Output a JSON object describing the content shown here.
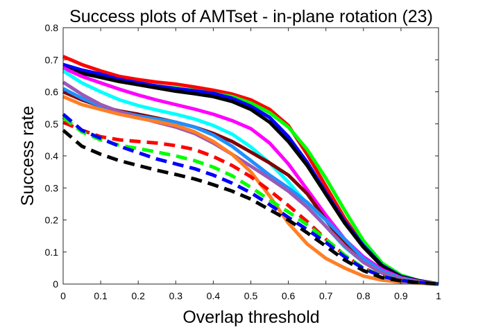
{
  "chart_data": {
    "type": "line",
    "title": "Success plots of AMTset - in-plane rotation (23)",
    "xlabel": "Overlap threshold",
    "ylabel": "Success rate",
    "xlim": [
      0,
      1
    ],
    "ylim": [
      0,
      0.8
    ],
    "xticks": [
      "0",
      "0.1",
      "0.2",
      "0.3",
      "0.4",
      "0.5",
      "0.6",
      "0.7",
      "0.8",
      "0.9",
      "1"
    ],
    "yticks": [
      "0",
      "0.1",
      "0.2",
      "0.3",
      "0.4",
      "0.5",
      "0.6",
      "0.7",
      "0.8"
    ],
    "grid": false,
    "legend": "none",
    "x": [
      0,
      0.05,
      0.1,
      0.15,
      0.2,
      0.25,
      0.3,
      0.35,
      0.4,
      0.45,
      0.5,
      0.55,
      0.6,
      0.65,
      0.7,
      0.75,
      0.8,
      0.85,
      0.9,
      0.95,
      1.0
    ],
    "series": [
      {
        "color": "#ff0000",
        "style": "solid",
        "values": [
          0.71,
          0.685,
          0.665,
          0.648,
          0.638,
          0.63,
          0.624,
          0.615,
          0.605,
          0.593,
          0.575,
          0.545,
          0.495,
          0.405,
          0.305,
          0.205,
          0.12,
          0.06,
          0.025,
          0.01,
          0.0
        ]
      },
      {
        "color": "#00ff00",
        "style": "solid",
        "values": [
          0.675,
          0.658,
          0.645,
          0.632,
          0.625,
          0.618,
          0.612,
          0.604,
          0.595,
          0.585,
          0.565,
          0.535,
          0.49,
          0.42,
          0.33,
          0.23,
          0.135,
          0.065,
          0.028,
          0.01,
          0.0
        ]
      },
      {
        "color": "#0000ff",
        "style": "solid",
        "values": [
          0.685,
          0.668,
          0.655,
          0.638,
          0.628,
          0.618,
          0.61,
          0.603,
          0.595,
          0.58,
          0.555,
          0.52,
          0.46,
          0.38,
          0.285,
          0.195,
          0.12,
          0.058,
          0.024,
          0.01,
          0.0
        ]
      },
      {
        "color": "#000000",
        "style": "solid",
        "values": [
          0.675,
          0.658,
          0.645,
          0.632,
          0.622,
          0.612,
          0.602,
          0.594,
          0.585,
          0.57,
          0.545,
          0.505,
          0.445,
          0.37,
          0.28,
          0.19,
          0.115,
          0.055,
          0.022,
          0.01,
          0.0
        ]
      },
      {
        "color": "#ff00ff",
        "style": "solid",
        "values": [
          0.675,
          0.648,
          0.628,
          0.608,
          0.59,
          0.574,
          0.56,
          0.546,
          0.53,
          0.51,
          0.485,
          0.44,
          0.375,
          0.295,
          0.215,
          0.14,
          0.085,
          0.045,
          0.02,
          0.008,
          0.0
        ]
      },
      {
        "color": "#00ffff",
        "style": "solid",
        "values": [
          0.665,
          0.628,
          0.6,
          0.575,
          0.557,
          0.543,
          0.53,
          0.515,
          0.495,
          0.468,
          0.428,
          0.378,
          0.318,
          0.25,
          0.18,
          0.115,
          0.068,
          0.035,
          0.016,
          0.006,
          0.0
        ]
      },
      {
        "color": "#800000",
        "style": "solid",
        "values": [
          0.6,
          0.575,
          0.555,
          0.54,
          0.53,
          0.518,
          0.505,
          0.49,
          0.47,
          0.445,
          0.412,
          0.378,
          0.34,
          0.282,
          0.2,
          0.125,
          0.07,
          0.035,
          0.015,
          0.006,
          0.0
        ]
      },
      {
        "color": "#1e90ff",
        "style": "solid",
        "values": [
          0.61,
          0.58,
          0.555,
          0.538,
          0.525,
          0.515,
          0.505,
          0.49,
          0.465,
          0.43,
          0.385,
          0.34,
          0.3,
          0.255,
          0.2,
          0.14,
          0.08,
          0.04,
          0.018,
          0.007,
          0.0
        ]
      },
      {
        "color": "#9b59b6",
        "style": "solid",
        "values": [
          0.63,
          0.592,
          0.56,
          0.538,
          0.52,
          0.505,
          0.49,
          0.47,
          0.44,
          0.405,
          0.368,
          0.33,
          0.29,
          0.24,
          0.18,
          0.118,
          0.068,
          0.034,
          0.015,
          0.006,
          0.0
        ]
      },
      {
        "color": "#ff7f27",
        "style": "solid",
        "values": [
          0.585,
          0.56,
          0.545,
          0.53,
          0.518,
          0.507,
          0.495,
          0.475,
          0.445,
          0.405,
          0.35,
          0.275,
          0.19,
          0.125,
          0.08,
          0.05,
          0.025,
          0.012,
          0.006,
          0.003,
          0.0
        ]
      },
      {
        "color": "#ff0000",
        "style": "dashed",
        "values": [
          0.505,
          0.48,
          0.46,
          0.45,
          0.445,
          0.44,
          0.432,
          0.42,
          0.398,
          0.37,
          0.335,
          0.292,
          0.245,
          0.195,
          0.14,
          0.09,
          0.05,
          0.025,
          0.012,
          0.005,
          0.0
        ]
      },
      {
        "color": "#00ff00",
        "style": "dashed",
        "values": [
          0.52,
          0.475,
          0.45,
          0.433,
          0.423,
          0.412,
          0.4,
          0.385,
          0.365,
          0.338,
          0.302,
          0.262,
          0.225,
          0.185,
          0.14,
          0.09,
          0.05,
          0.025,
          0.012,
          0.005,
          0.0
        ]
      },
      {
        "color": "#0000ff",
        "style": "dashed",
        "values": [
          0.53,
          0.48,
          0.455,
          0.43,
          0.41,
          0.39,
          0.375,
          0.36,
          0.34,
          0.315,
          0.285,
          0.248,
          0.208,
          0.17,
          0.13,
          0.085,
          0.048,
          0.024,
          0.011,
          0.005,
          0.0
        ]
      },
      {
        "color": "#000000",
        "style": "dashed",
        "values": [
          0.48,
          0.43,
          0.405,
          0.385,
          0.37,
          0.355,
          0.342,
          0.328,
          0.31,
          0.29,
          0.265,
          0.232,
          0.2,
          0.16,
          0.118,
          0.075,
          0.042,
          0.02,
          0.01,
          0.004,
          0.0
        ]
      }
    ]
  }
}
